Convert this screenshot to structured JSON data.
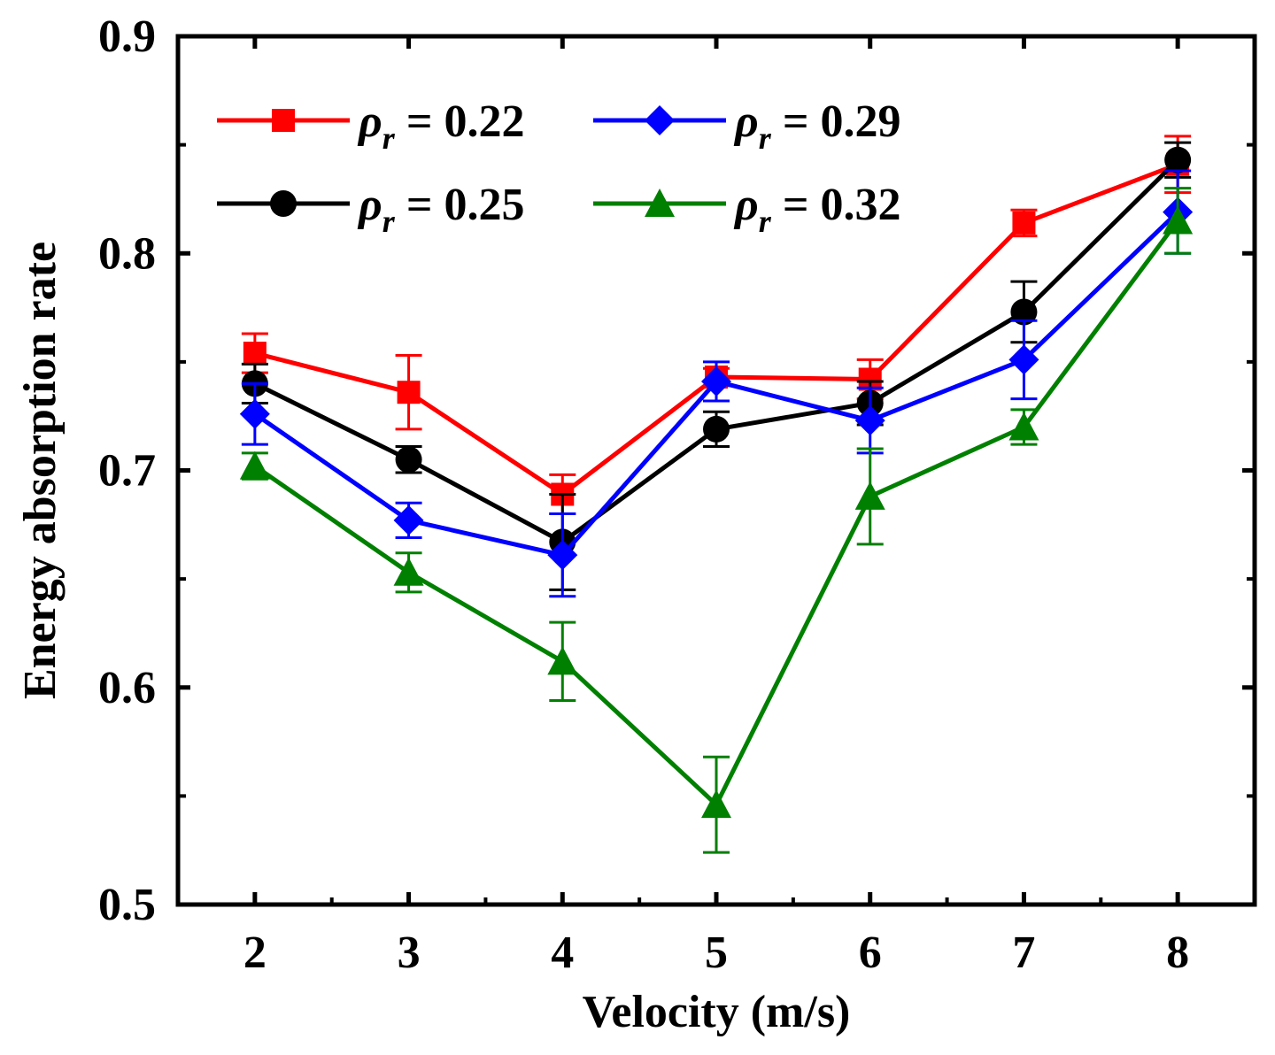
{
  "chart_data": {
    "type": "line",
    "title": "",
    "xlabel": "Velocity (m/s)",
    "ylabel": "Energy absorption rate",
    "x": [
      2,
      3,
      4,
      5,
      6,
      7,
      8
    ],
    "xlim": [
      1.5,
      8.5
    ],
    "ylim": [
      0.5,
      0.9
    ],
    "xticks": [
      "2",
      "3",
      "4",
      "5",
      "6",
      "7",
      "8"
    ],
    "yticks": [
      "0.5",
      "0.6",
      "0.7",
      "0.8",
      "0.9"
    ],
    "grid": false,
    "legend_position": "top-left",
    "series": [
      {
        "name": "= 0.22",
        "symbol": "ρ",
        "subscript": "r",
        "color": "#ff0000",
        "marker": "square",
        "values": [
          0.754,
          0.736,
          0.689,
          0.743,
          0.742,
          0.814,
          0.841
        ],
        "errors": [
          0.009,
          0.017,
          0.009,
          0.004,
          0.009,
          0.006,
          0.013
        ]
      },
      {
        "name": "= 0.25",
        "symbol": "ρ",
        "subscript": "r",
        "color": "#000000",
        "marker": "circle",
        "values": [
          0.74,
          0.705,
          0.667,
          0.719,
          0.731,
          0.773,
          0.843
        ],
        "errors": [
          0.009,
          0.006,
          0.022,
          0.008,
          0.01,
          0.014,
          0.008
        ]
      },
      {
        "name": "= 0.29",
        "symbol": "ρ",
        "subscript": "r",
        "color": "#0000ff",
        "marker": "diamond",
        "values": [
          0.726,
          0.677,
          0.661,
          0.741,
          0.723,
          0.751,
          0.819
        ],
        "errors": [
          0.014,
          0.008,
          0.019,
          0.009,
          0.015,
          0.018,
          0.019
        ]
      },
      {
        "name": "= 0.32",
        "symbol": "ρ",
        "subscript": "r",
        "color": "#008000",
        "marker": "triangle",
        "values": [
          0.702,
          0.653,
          0.612,
          0.546,
          0.688,
          0.72,
          0.815
        ],
        "errors": [
          0.006,
          0.009,
          0.018,
          0.022,
          0.022,
          0.008,
          0.015
        ]
      }
    ]
  }
}
